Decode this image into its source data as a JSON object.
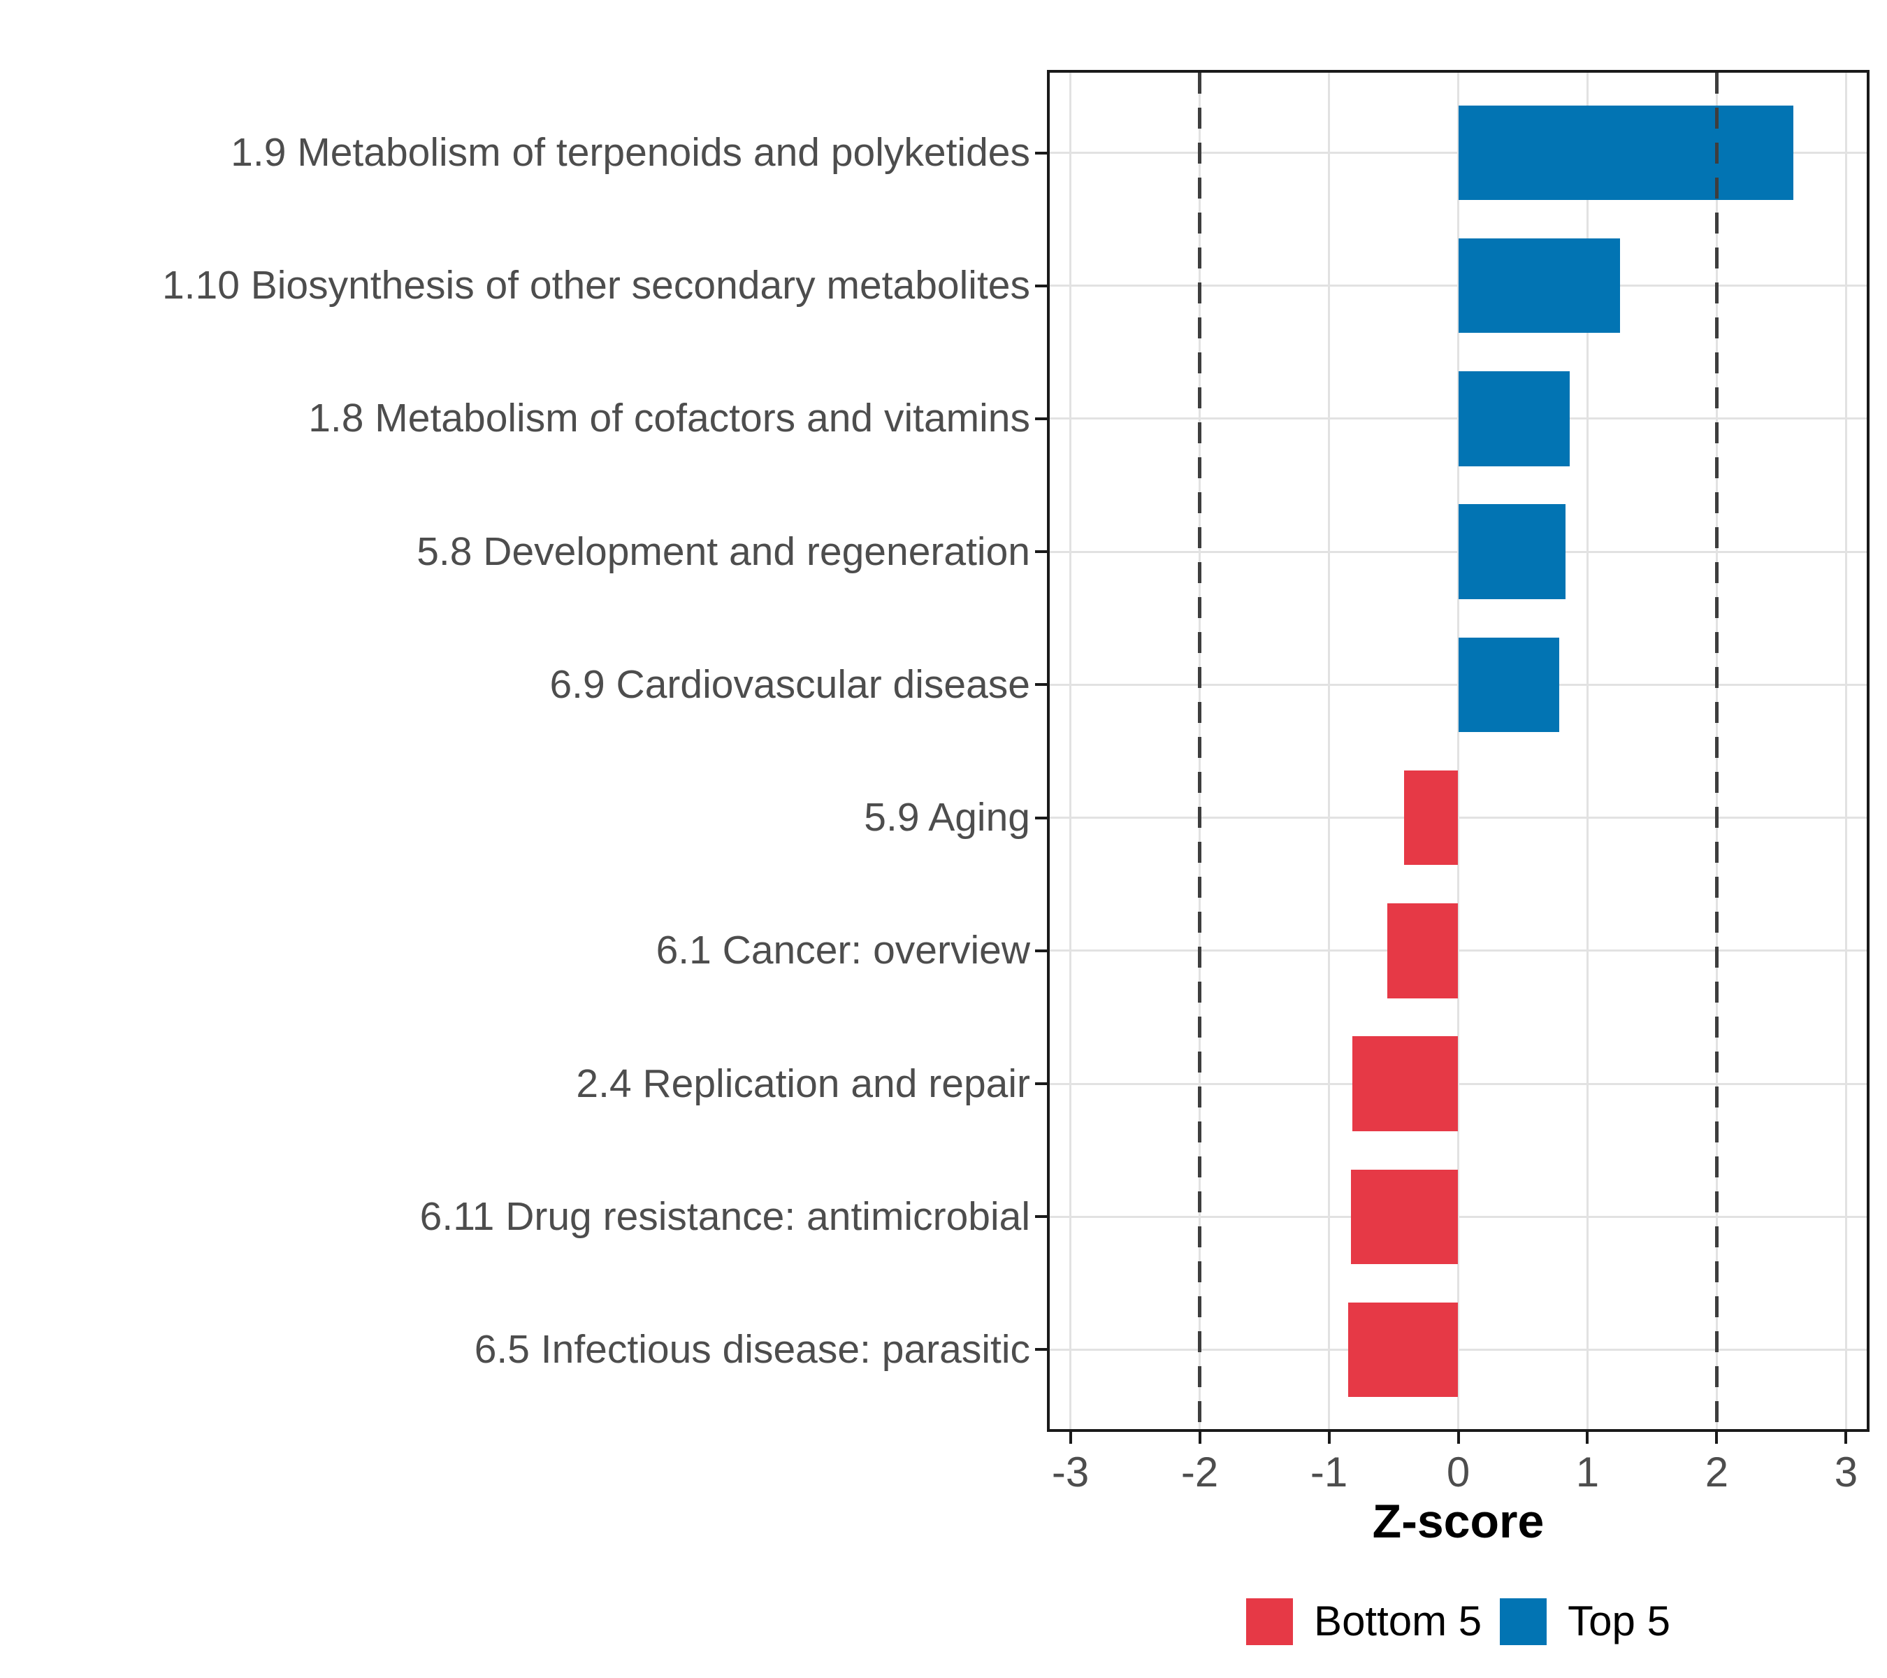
{
  "chart_data": {
    "type": "bar",
    "orientation": "horizontal",
    "title": "",
    "xlabel": "Z-score",
    "ylabel": "",
    "xlim": [
      -3.16,
      3.16
    ],
    "x_ticks": [
      "-3",
      "-2",
      "-1",
      "0",
      "1",
      "2",
      "3"
    ],
    "x_tick_values": [
      -3,
      -2,
      -1,
      0,
      1,
      2,
      3
    ],
    "reference_lines": [
      -2,
      2
    ],
    "grid": true,
    "legend_position": "bottom",
    "categories": [
      "1.9 Metabolism of terpenoids and polyketides",
      "1.10 Biosynthesis of other secondary metabolites",
      "1.8 Metabolism of cofactors and vitamins",
      "5.8 Development and regeneration",
      "6.9 Cardiovascular disease",
      "5.9 Aging",
      "6.1 Cancer: overview",
      "2.4 Replication and repair",
      "6.11 Drug resistance: antimicrobial",
      "6.5 Infectious disease: parasitic"
    ],
    "values": [
      2.59,
      1.25,
      0.86,
      0.83,
      0.78,
      -0.42,
      -0.55,
      -0.82,
      -0.83,
      -0.85
    ],
    "groups": [
      "Top 5",
      "Top 5",
      "Top 5",
      "Top 5",
      "Top 5",
      "Bottom 5",
      "Bottom 5",
      "Bottom 5",
      "Bottom 5",
      "Bottom 5"
    ],
    "legend": [
      {
        "label": "Bottom 5",
        "color": "#E63946"
      },
      {
        "label": "Top 5",
        "color": "#0274B3"
      }
    ],
    "colors": {
      "top_5": "#0274B3",
      "bottom_5": "#E63946",
      "gridline": "#E2E2E2",
      "reference_line": "#3E3E3E",
      "axis_text": "#4D4D4D",
      "title_text": "#000000",
      "panel_border": "#1A1A1A",
      "background": "#FFFFFF"
    }
  }
}
